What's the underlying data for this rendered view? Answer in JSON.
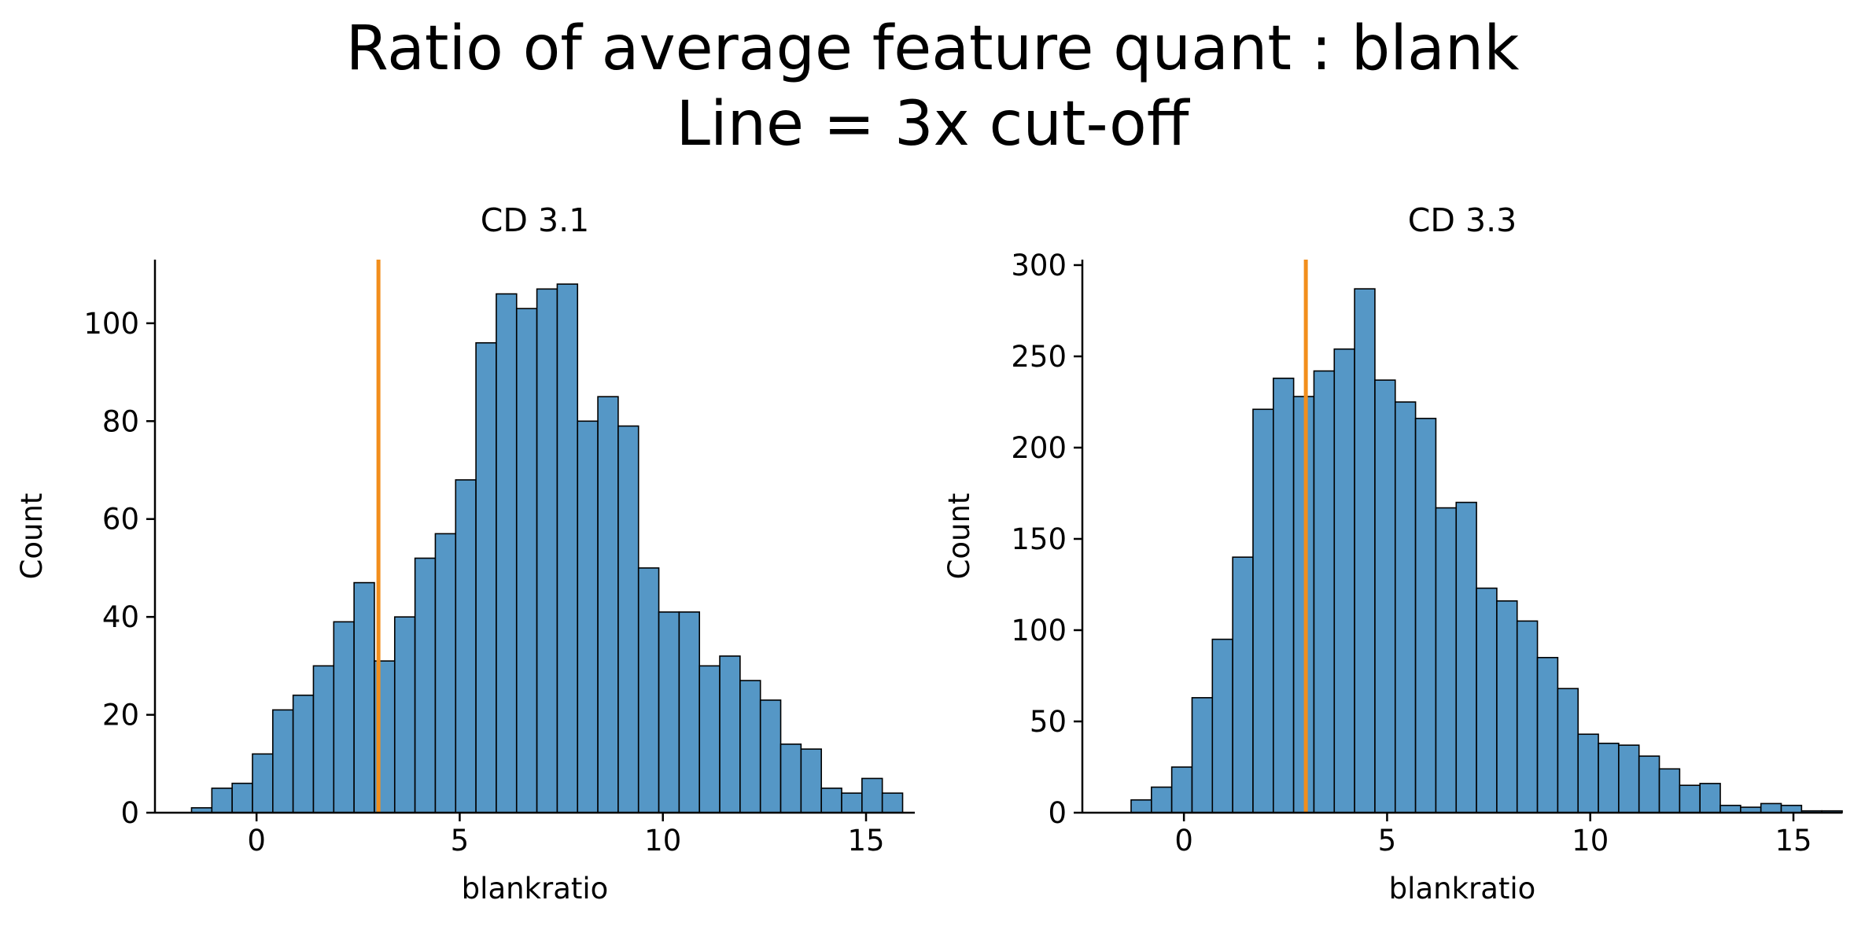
{
  "figure": {
    "title_line1": "Ratio of average feature quant : blank",
    "title_line2": "Line = 3x cut-off"
  },
  "colors": {
    "bar_fill": "#5597c6",
    "bar_edge": "#000000",
    "cutoff_line": "#f28e1c"
  },
  "chart_data": [
    {
      "type": "bar",
      "title": "CD 3.1",
      "xlabel": "blankratio",
      "ylabel": "Count",
      "xlim": [
        -2.5,
        16.2
      ],
      "ylim": [
        0,
        113
      ],
      "xticks": [
        0,
        5,
        10,
        15
      ],
      "yticks": [
        0,
        20,
        40,
        60,
        80,
        100
      ],
      "bin_width": 0.5,
      "bin_start": -1.6,
      "values": [
        1,
        5,
        6,
        12,
        21,
        24,
        30,
        39,
        47,
        31,
        40,
        52,
        57,
        68,
        96,
        106,
        103,
        107,
        108,
        80,
        85,
        79,
        50,
        41,
        41,
        30,
        32,
        27,
        23,
        14,
        13,
        5,
        4,
        7,
        4
      ],
      "cutoff": 3
    },
    {
      "type": "bar",
      "title": "CD 3.3",
      "xlabel": "blankratio",
      "ylabel": "Count",
      "xlim": [
        -2.5,
        16.2
      ],
      "ylim": [
        0,
        303
      ],
      "xticks": [
        0,
        5,
        10,
        15
      ],
      "yticks": [
        0,
        50,
        100,
        150,
        200,
        250,
        300
      ],
      "bin_width": 0.5,
      "bin_start": -1.3,
      "values": [
        7,
        14,
        25,
        63,
        95,
        140,
        221,
        238,
        228,
        242,
        254,
        287,
        237,
        225,
        216,
        167,
        170,
        123,
        116,
        105,
        85,
        68,
        43,
        38,
        37,
        31,
        24,
        15,
        16,
        4,
        3,
        5,
        4,
        1,
        1
      ],
      "cutoff": 3
    }
  ]
}
